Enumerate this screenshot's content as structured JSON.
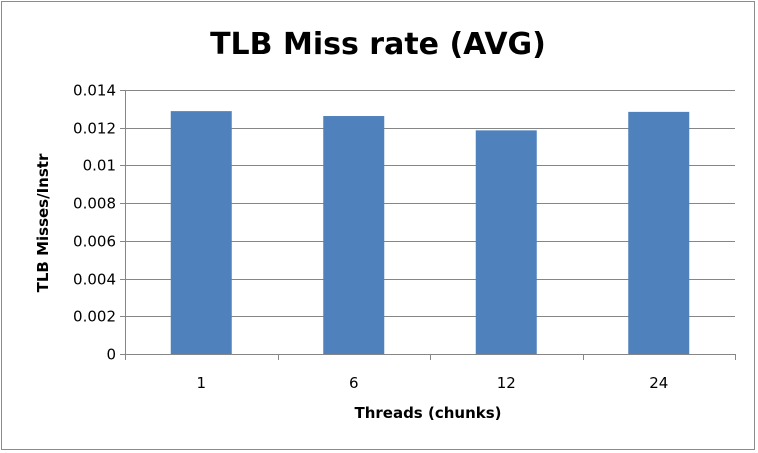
{
  "chart_data": {
    "type": "bar",
    "title": "TLB Miss rate (AVG)",
    "xlabel": "Threads (chunks)",
    "ylabel": "TLB Misses/Instr",
    "categories": [
      "1",
      "6",
      "12",
      "24"
    ],
    "values": [
      0.01288,
      0.01262,
      0.01186,
      0.01284
    ],
    "ylim": [
      0,
      0.014
    ],
    "yticks": [
      "0",
      "0.002",
      "0.004",
      "0.006",
      "0.008",
      "0.01",
      "0.012",
      "0.014"
    ],
    "ytick_values": [
      0,
      0.002,
      0.004,
      0.006,
      0.008,
      0.01,
      0.012,
      0.014
    ],
    "grid": true,
    "legend": "none",
    "bar_color": "#4f81bd",
    "grid_color": "#868686"
  }
}
